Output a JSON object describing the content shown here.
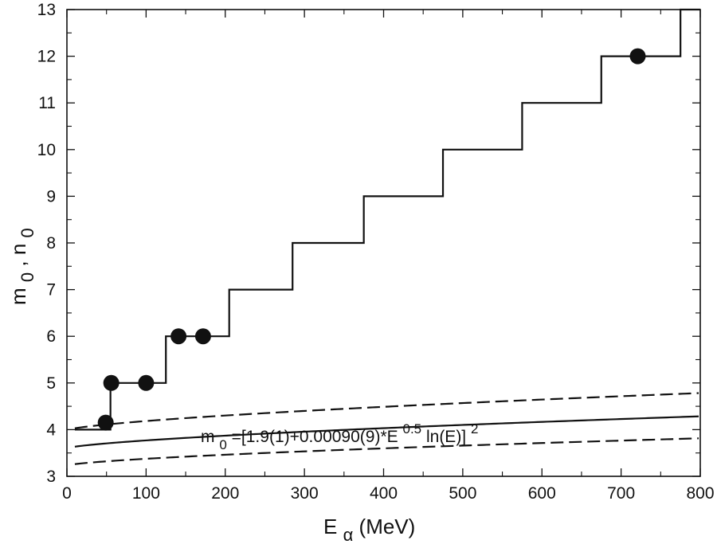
{
  "chart_data": {
    "type": "line",
    "xlabel": {
      "main": "E",
      "sub": "α",
      "rest": " (MeV)"
    },
    "ylabel": {
      "a": "m",
      "a_sub": "0",
      "sep": ", ",
      "b": "n",
      "b_sub": "0"
    },
    "xlim": [
      0,
      800
    ],
    "ylim": [
      3,
      13
    ],
    "xticks": [
      0,
      100,
      200,
      300,
      400,
      500,
      600,
      700,
      800
    ],
    "yticks": [
      3,
      4,
      5,
      6,
      7,
      8,
      9,
      10,
      11,
      12,
      13
    ],
    "x_minor_step": 50,
    "y_minor_step": 0.5,
    "grid": false,
    "annotation": {
      "p1": "m",
      "p1_sub": "0",
      "p2": "=[1.9(1)+0.00090(9)*E",
      "p2_sup": "0.5",
      "p3": "ln(E)]",
      "p3_sup": "2"
    },
    "series": [
      {
        "style": "step",
        "points": [
          [
            10,
            4
          ],
          [
            55,
            4
          ],
          [
            55,
            5
          ],
          [
            125,
            5
          ],
          [
            125,
            6
          ],
          [
            205,
            6
          ],
          [
            205,
            7
          ],
          [
            285,
            7
          ],
          [
            285,
            8
          ],
          [
            375,
            8
          ],
          [
            375,
            9
          ],
          [
            475,
            9
          ],
          [
            475,
            10
          ],
          [
            575,
            10
          ],
          [
            575,
            11
          ],
          [
            675,
            11
          ],
          [
            675,
            12
          ],
          [
            775,
            12
          ],
          [
            775,
            13
          ],
          [
            800,
            13
          ]
        ]
      },
      {
        "style": "fit",
        "formula": {
          "a": 1.9,
          "b": 0.0009
        },
        "x_range": [
          10,
          800
        ]
      },
      {
        "style": "fit-upper",
        "formula": {
          "a": 2.0,
          "b": 0.00099
        },
        "x_range": [
          10,
          800
        ]
      },
      {
        "style": "fit-lower",
        "formula": {
          "a": 1.8,
          "b": 0.00081
        },
        "x_range": [
          10,
          800
        ]
      },
      {
        "style": "points",
        "points": [
          [
            49,
            4.15
          ],
          [
            56,
            5.0
          ],
          [
            100,
            5.0
          ],
          [
            141,
            6.0
          ],
          [
            172,
            6.0
          ],
          [
            721,
            12.0
          ]
        ]
      }
    ]
  }
}
